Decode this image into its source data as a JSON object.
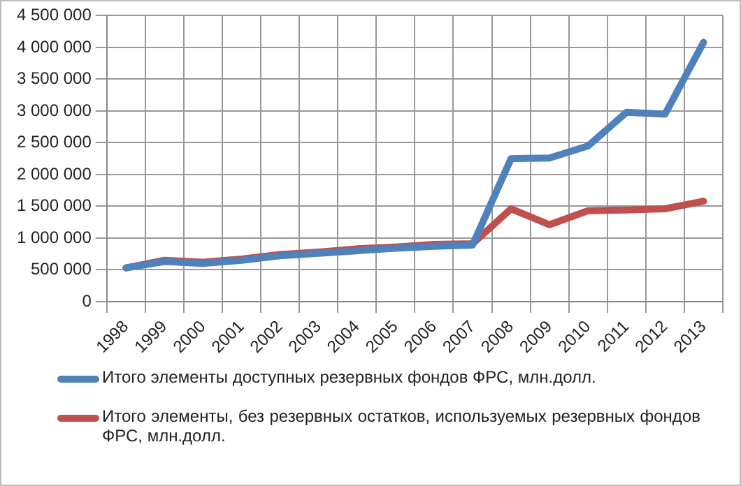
{
  "chart_data": {
    "type": "line",
    "categories": [
      "1998",
      "1999",
      "2000",
      "2001",
      "2002",
      "2003",
      "2004",
      "2005",
      "2006",
      "2007",
      "2008",
      "2009",
      "2010",
      "2011",
      "2012",
      "2013"
    ],
    "series": [
      {
        "name": "Итого элементы доступных резервных  фондов ФРС, млн.долл.",
        "color": "#4f81bd",
        "values": [
          530000,
          630000,
          600000,
          650000,
          720000,
          760000,
          800000,
          840000,
          870000,
          890000,
          2250000,
          2260000,
          2450000,
          2980000,
          2950000,
          4080000
        ]
      },
      {
        "name": "Итого элементы, без резервных остатков, используемых резервных фондов ФРС, млн.долл.",
        "color": "#c0504d",
        "values": [
          530000,
          650000,
          620000,
          670000,
          740000,
          780000,
          830000,
          860000,
          900000,
          910000,
          1460000,
          1210000,
          1430000,
          1440000,
          1460000,
          1580000
        ]
      }
    ],
    "ylim": [
      0,
      4500000
    ],
    "yticks": [
      0,
      {
        "value": 500000,
        "label": "500 000"
      },
      {
        "value": 1000000,
        "label": "1 000 000"
      },
      {
        "value": 1500000,
        "label": "1 500 000"
      },
      {
        "value": 2000000,
        "label": "2 000 000"
      },
      {
        "value": 2500000,
        "label": "2 500 000"
      },
      {
        "value": 3000000,
        "label": "3 000 000"
      },
      {
        "value": 3500000,
        "label": "3 500 000"
      },
      {
        "value": 4000000,
        "label": "4 000 000"
      },
      {
        "value": 4500000,
        "label": "4 500 000"
      }
    ],
    "grid": true,
    "legend": "bottom",
    "marker": "none",
    "line_style": "solid"
  }
}
